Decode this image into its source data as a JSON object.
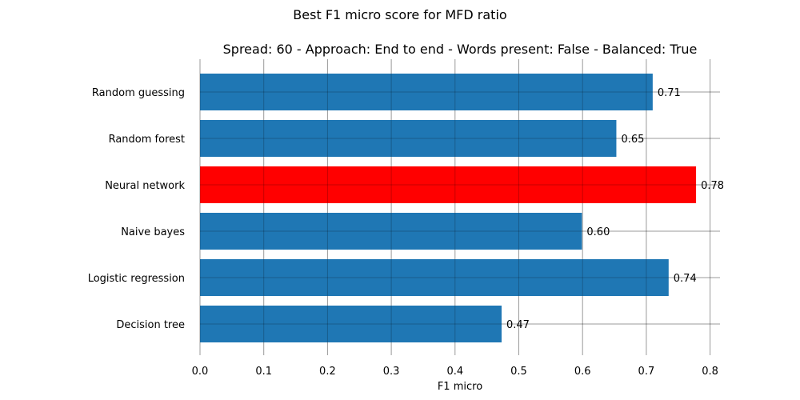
{
  "chart_data": {
    "type": "bar",
    "orientation": "horizontal",
    "suptitle": "Best F1 micro score for MFD ratio",
    "title": "Spread: 60 - Approach: End to end - Words present: False - Balanced: True",
    "xlabel": "F1 micro",
    "ylabel": "",
    "xlim": [
      0,
      0.8
    ],
    "xticks": [
      "0.0",
      "0.1",
      "0.2",
      "0.3",
      "0.4",
      "0.5",
      "0.6",
      "0.7",
      "0.8"
    ],
    "grid": true,
    "categories": [
      "Random guessing",
      "Random forest",
      "Neural network",
      "Naive bayes",
      "Logistic regression",
      "Decision tree"
    ],
    "values": [
      0.71,
      0.653,
      0.778,
      0.599,
      0.735,
      0.473
    ],
    "value_labels": [
      "0.71",
      "0.65",
      "0.78",
      "0.60",
      "0.74",
      "0.47"
    ],
    "colors": [
      "#1f77b4",
      "#1f77b4",
      "#ff0000",
      "#1f77b4",
      "#1f77b4",
      "#1f77b4"
    ],
    "highlight": "Neural network"
  }
}
